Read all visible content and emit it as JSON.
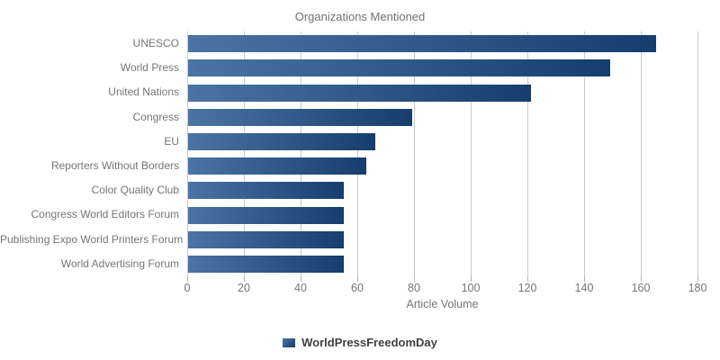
{
  "chart": {
    "title": "Organizations Mentioned",
    "x_axis_title": "Article Volume",
    "legend_label": "WorldPressFreedomDay"
  },
  "chart_data": {
    "type": "bar",
    "orientation": "horizontal",
    "title": "Organizations Mentioned",
    "xlabel": "Article Volume",
    "ylabel": "",
    "categories": [
      "UNESCO",
      "World Press",
      "United Nations",
      "Congress",
      "EU",
      "Reporters Without Borders",
      "Color Quality Club",
      "Congress World Editors Forum",
      "Publishing Expo World Printers Forum",
      "World Advertising Forum"
    ],
    "series": [
      {
        "name": "WorldPressFreedomDay",
        "values": [
          165,
          149,
          121,
          79,
          66,
          63,
          55,
          55,
          55,
          55
        ]
      }
    ],
    "xlim": [
      0,
      180
    ],
    "xticks": [
      0,
      20,
      40,
      60,
      80,
      100,
      120,
      140,
      160,
      180
    ],
    "grid": true,
    "legend_position": "bottom",
    "colors": {
      "bar_gradient_start": "#4a74a3",
      "bar_gradient_end": "#153e6f",
      "grid_line": "#c9c9c9",
      "tick_mark": "#b3b3b3",
      "axis_text": "#757575",
      "title_text": "#707070",
      "legend_text": "#3f3f3f"
    }
  }
}
